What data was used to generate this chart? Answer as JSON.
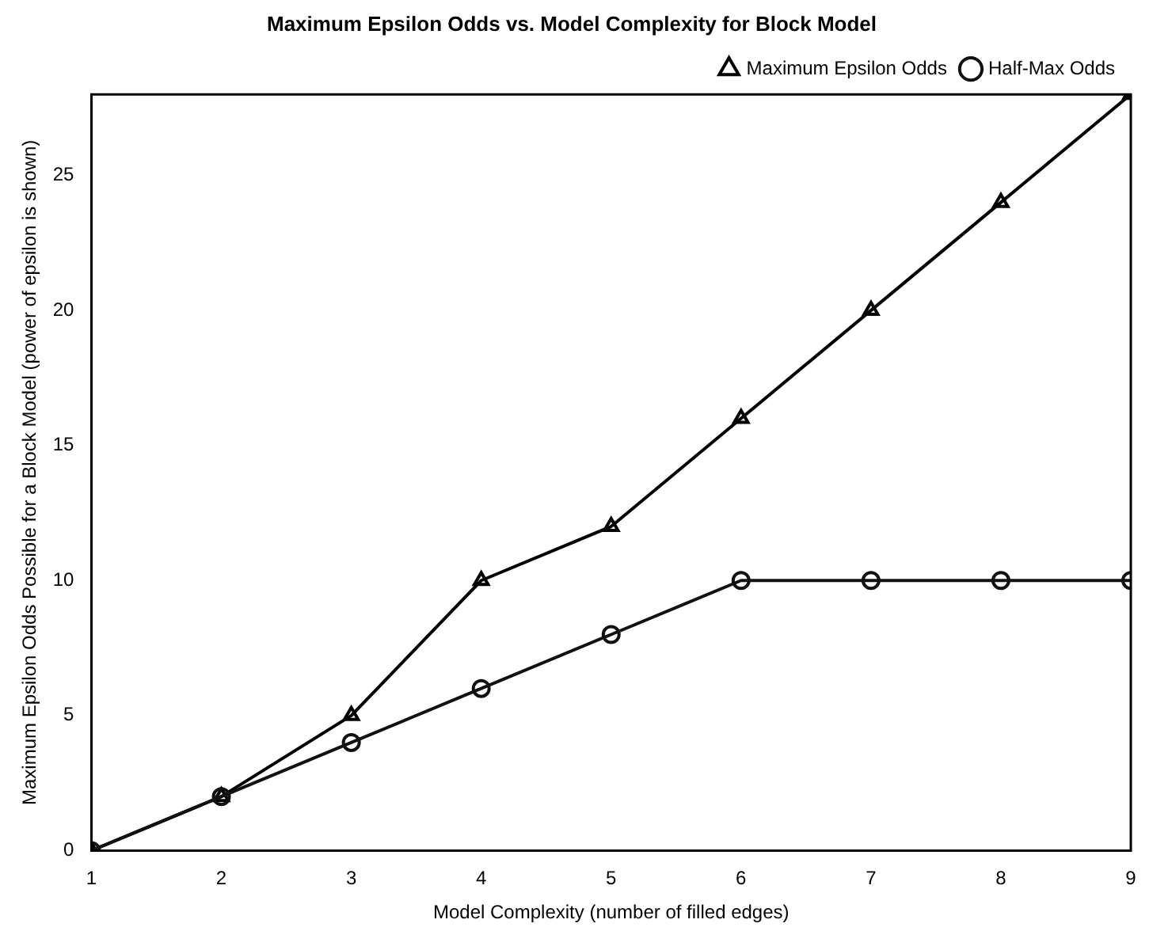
{
  "chart_data": {
    "type": "line",
    "title": "Maximum Epsilon Odds vs. Model Complexity for Block Model",
    "xlabel": "Model Complexity (number of filled edges)",
    "ylabel": "Maximum Epsilon Odds Possible for a Block Model (power of epsilon is shown)",
    "x": [
      1,
      2,
      3,
      4,
      5,
      6,
      7,
      8,
      9
    ],
    "series": [
      {
        "name": "Maximum Epsilon Odds",
        "color": "#000000",
        "marker": "triangle",
        "values": [
          0,
          2,
          5,
          10,
          12,
          16,
          20,
          24,
          28
        ]
      },
      {
        "name": "Half-Max Odds",
        "color": "#111111",
        "marker": "circle",
        "values": [
          0,
          2,
          4,
          6,
          8,
          10,
          10,
          10,
          10
        ]
      }
    ],
    "xlim": [
      1,
      9
    ],
    "xticks": [
      1,
      2,
      3,
      4,
      5,
      6,
      7,
      8,
      9
    ],
    "ylim": [
      0,
      28
    ],
    "yticks": [
      0,
      5,
      10,
      15,
      20,
      25
    ],
    "grid": false,
    "legend": "top right",
    "line_style": "solid"
  }
}
